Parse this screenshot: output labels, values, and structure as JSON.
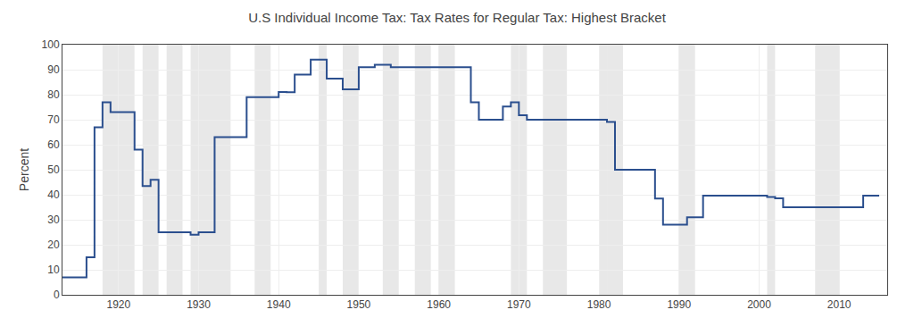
{
  "chart_data": {
    "type": "step",
    "title": "U.S Individual Income Tax: Tax Rates for Regular Tax: Highest Bracket",
    "ylabel": "Percent",
    "x": [
      1913,
      1914,
      1915,
      1916,
      1917,
      1918,
      1919,
      1920,
      1921,
      1922,
      1923,
      1924,
      1925,
      1926,
      1927,
      1928,
      1929,
      1930,
      1931,
      1932,
      1933,
      1934,
      1935,
      1936,
      1937,
      1938,
      1939,
      1940,
      1941,
      1942,
      1943,
      1944,
      1945,
      1946,
      1947,
      1948,
      1949,
      1950,
      1951,
      1952,
      1953,
      1954,
      1955,
      1956,
      1957,
      1958,
      1959,
      1960,
      1961,
      1962,
      1963,
      1964,
      1965,
      1966,
      1967,
      1968,
      1969,
      1970,
      1971,
      1972,
      1973,
      1974,
      1975,
      1976,
      1977,
      1978,
      1979,
      1980,
      1981,
      1982,
      1983,
      1984,
      1985,
      1986,
      1987,
      1988,
      1989,
      1990,
      1991,
      1992,
      1993,
      1994,
      1995,
      1996,
      1997,
      1998,
      1999,
      2000,
      2001,
      2002,
      2003,
      2004,
      2005,
      2006,
      2007,
      2008,
      2009,
      2010,
      2011,
      2012,
      2013,
      2014,
      2015
    ],
    "values": [
      7,
      7,
      7,
      15,
      67,
      77,
      73,
      73,
      73,
      58,
      43.5,
      46,
      25,
      25,
      25,
      25,
      24,
      25,
      25,
      63,
      63,
      63,
      63,
      79,
      79,
      79,
      79,
      81.1,
      81,
      88,
      88,
      94,
      94,
      86.45,
      86.45,
      82.13,
      82.13,
      91,
      91,
      92,
      92,
      91,
      91,
      91,
      91,
      91,
      91,
      91,
      91,
      91,
      91,
      77,
      70,
      70,
      70,
      75.25,
      77,
      71.75,
      70,
      70,
      70,
      70,
      70,
      70,
      70,
      70,
      70,
      70,
      69.125,
      50,
      50,
      50,
      50,
      50,
      38.5,
      28,
      28,
      28,
      31,
      31,
      39.6,
      39.6,
      39.6,
      39.6,
      39.6,
      39.6,
      39.6,
      39.6,
      39.1,
      38.6,
      35,
      35,
      35,
      35,
      35,
      35,
      35,
      35,
      35,
      35,
      39.6,
      39.6,
      39.6
    ],
    "color": "#2b4f8e",
    "shaded_ranges": [
      [
        1918,
        1920
      ],
      [
        1920,
        1922
      ],
      [
        1923,
        1925
      ],
      [
        1926,
        1928
      ],
      [
        1929,
        1934
      ],
      [
        1937,
        1939
      ],
      [
        1945,
        1946
      ],
      [
        1948,
        1950
      ],
      [
        1953,
        1955
      ],
      [
        1957,
        1959
      ],
      [
        1960,
        1962
      ],
      [
        1969,
        1971
      ],
      [
        1973,
        1976
      ],
      [
        1980,
        1981
      ],
      [
        1981,
        1983
      ],
      [
        1990,
        1992
      ],
      [
        2001,
        2002
      ],
      [
        2007,
        2010
      ]
    ],
    "xlim": [
      1913,
      2016
    ],
    "ylim": [
      0,
      100
    ],
    "xticks": [
      1920,
      1930,
      1940,
      1950,
      1960,
      1970,
      1980,
      1990,
      2000,
      2010
    ],
    "yticks": [
      0,
      10,
      20,
      30,
      40,
      50,
      60,
      70,
      80,
      90,
      100
    ],
    "grid": true
  }
}
